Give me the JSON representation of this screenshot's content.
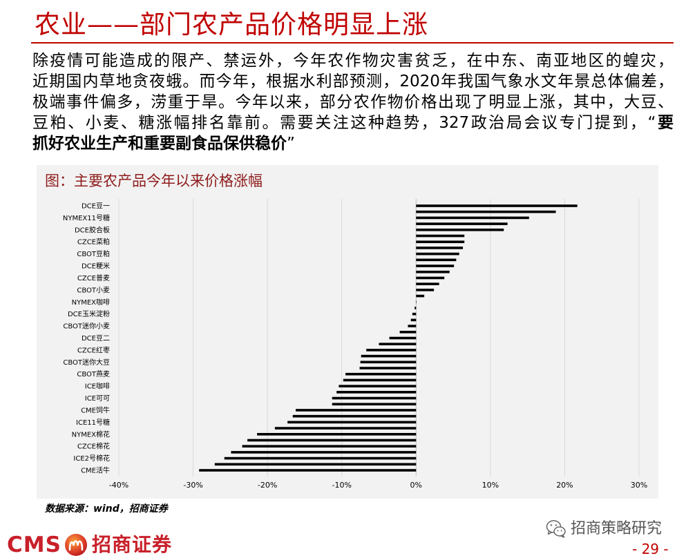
{
  "slide": {
    "title": "农业——部门农产品价格明显上涨",
    "page_number": "- 29 -"
  },
  "paragraph": {
    "line1": "除疫情可能造成的限产、禁运外，今年农作物灾害贫乏，在中东、南亚地区的蝗灾，",
    "line2": "近期国内草地贪夜蛾。而今年，根据水利部预测，2020年我国气象水文年景总体偏差，",
    "line3": "极端事件偏多，涝重于旱。今年以来，部分农作物价格出现了明显上涨，其中，大豆、",
    "line4": "豆粕、小麦、糖涨幅排名靠前。需要关注这种趋势，327政治局会议专门提到，“",
    "line4_bold": "要",
    "line5_bold": "抓好农业生产和重要副食品保供稳价",
    "line5_end": "”"
  },
  "chart_panel": {
    "source": "数据来源：wind，招商证券"
  },
  "chart_data": {
    "type": "bar",
    "orientation": "horizontal",
    "title": "图：主要农产品今年以来价格涨幅",
    "categories": [
      "DCE豆一",
      "",
      "NYMEX11号糖",
      "",
      "DCE胶合板",
      "",
      "CZCE菜粕",
      "",
      "CBOT豆粕",
      "",
      "DCE粳米",
      "",
      "CZCE普麦",
      "",
      "CBOT小麦",
      "",
      "NYMEX咖啡",
      "",
      "DCE玉米淀粉",
      "",
      "CBOT迷你小麦",
      "",
      "DCE豆二",
      "",
      "CZCE红枣",
      "",
      "CBOT迷你大豆",
      "",
      "CBOT燕麦",
      "",
      "ICE咖啡",
      "",
      "ICE可可",
      "",
      "CME饲牛",
      "",
      "ICE11号糖",
      "",
      "NYMEX棉花",
      "",
      "CZCE棉花",
      "",
      "ICE2号棉花",
      "",
      "CME活牛"
    ],
    "values": [
      21.7,
      18.8,
      15.2,
      12.3,
      11.8,
      6.5,
      6.5,
      6.3,
      5.8,
      5.4,
      5.1,
      4.5,
      3.8,
      3.1,
      2.4,
      1.1,
      0.0,
      -0.2,
      -0.5,
      -0.7,
      -1.1,
      -2.2,
      -3.6,
      -5.0,
      -6.7,
      -7.4,
      -7.5,
      -7.6,
      -9.5,
      -9.8,
      -10.4,
      -10.7,
      -11.3,
      -11.3,
      -16.2,
      -16.6,
      -17.3,
      -19.0,
      -21.4,
      -22.7,
      -23.4,
      -24.9,
      -25.8,
      -27.1,
      -29.2
    ],
    "xlim": [
      -40,
      30
    ],
    "x_ticks": [
      -40,
      -30,
      -20,
      -10,
      0,
      10,
      20,
      30
    ],
    "x_tick_labels": [
      "-40%",
      "-30%",
      "-20%",
      "-10%",
      "0%",
      "10%",
      "20%",
      "30%"
    ],
    "grid": "vertical",
    "legend": "none",
    "bar_color": "#000000"
  },
  "footer": {
    "logo_text": "CMS",
    "logo_icon": "cms-emblem-icon",
    "brand_name": "招商证券",
    "watermark_icon": "wechat-icon",
    "watermark_text": "招商策略研究"
  },
  "colors": {
    "accent": "#C00000",
    "chart_title": "#8E1B1B",
    "panel_background": "#F2F2F2",
    "watermark": "#555555"
  }
}
